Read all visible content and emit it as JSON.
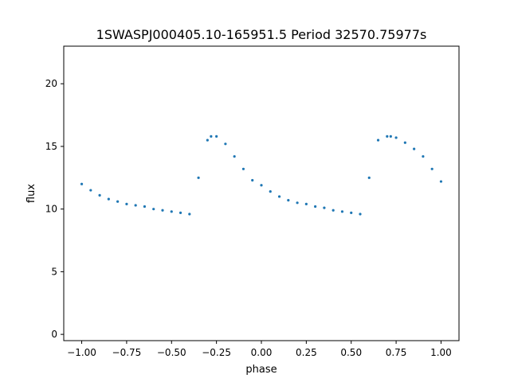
{
  "chart_data": {
    "type": "scatter",
    "title": "1SWASPJ000405.10-165951.5 Period 32570.75977s",
    "xlabel": "phase",
    "ylabel": "flux",
    "xlim": [
      -1.1,
      1.1
    ],
    "ylim": [
      -0.5,
      23.0
    ],
    "xticks": [
      -1.0,
      -0.75,
      -0.5,
      -0.25,
      0.0,
      0.25,
      0.5,
      0.75,
      1.0
    ],
    "xtick_labels": [
      "−1.00",
      "−0.75",
      "−0.50",
      "−0.25",
      "0.00",
      "0.25",
      "0.50",
      "0.75",
      "1.00"
    ],
    "yticks": [
      0,
      5,
      10,
      15,
      20
    ],
    "ytick_labels": [
      "0",
      "5",
      "10",
      "15",
      "20"
    ],
    "grid": false,
    "legend": "none",
    "point_color": "#1f77b4",
    "series": [
      {
        "x": [
          -1.0,
          -0.95,
          -0.9,
          -0.85,
          -0.8,
          -0.75,
          -0.7,
          -0.65,
          -0.6,
          -0.55,
          -0.5,
          -0.45,
          -0.4,
          -0.35,
          -0.3,
          -0.28,
          -0.25,
          -0.2,
          -0.15,
          -0.1,
          -0.05,
          0.0,
          0.05,
          0.1,
          0.15,
          0.2,
          0.25,
          0.3,
          0.35,
          0.4,
          0.45,
          0.5,
          0.55,
          0.6,
          0.65,
          0.7,
          0.72,
          0.75,
          0.8,
          0.85,
          0.9,
          0.95,
          1.0
        ],
        "y": [
          12.0,
          11.5,
          11.1,
          10.8,
          10.6,
          10.4,
          10.3,
          10.2,
          10.0,
          9.9,
          9.8,
          9.7,
          9.6,
          12.5,
          15.5,
          15.8,
          15.8,
          15.2,
          14.2,
          13.2,
          12.3,
          11.9,
          11.4,
          11.0,
          10.7,
          10.5,
          10.4,
          10.2,
          10.1,
          9.9,
          9.8,
          9.7,
          9.6,
          12.5,
          15.5,
          15.8,
          15.8,
          15.7,
          15.3,
          14.8,
          14.2,
          13.2,
          12.2
        ]
      }
    ]
  }
}
